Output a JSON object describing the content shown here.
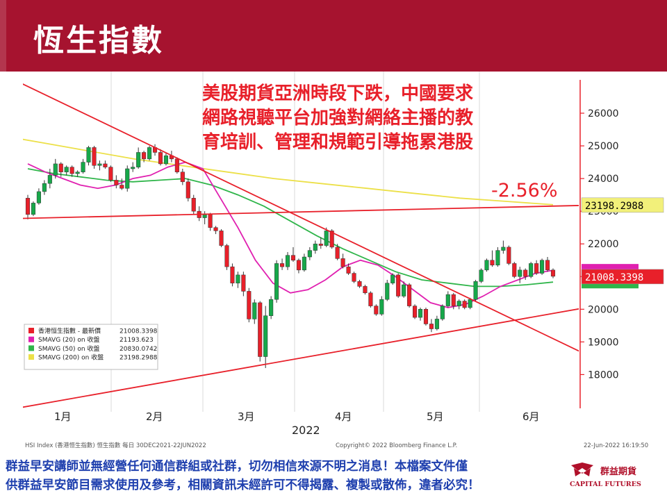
{
  "page": {
    "title": "恆生指數"
  },
  "annotation": {
    "headline_lines": [
      "美股期貨亞洲時段下跌，中國要求",
      "網路視聽平台加強對網絡主播的教",
      "育培訓、管理和規範引導拖累港股"
    ],
    "change_pct": "-2.56%"
  },
  "colors": {
    "header": "#a6132f",
    "up": "#17a84a",
    "down": "#e8202a",
    "sma20": "#e020b0",
    "sma50": "#2fb54a",
    "sma200": "#ece048",
    "trend": "#e8202a",
    "axis": "#e8202a",
    "headline": "#e8202a",
    "disclaimer": "#1e3fae"
  },
  "chart_data": {
    "type": "candlestick",
    "x_tick_labels": [
      "1月",
      "2月",
      "3月",
      "4月",
      "5月",
      "6月"
    ],
    "year_label": "2022",
    "y_ticks": [
      18000,
      19000,
      20000,
      21000,
      22000,
      23000,
      24000,
      25000,
      26000
    ],
    "y_tick_labels": [
      "18000",
      "19000",
      "20000",
      "21000",
      "22000",
      "23000",
      "24000",
      "25000",
      "26000"
    ],
    "ylim": [
      17000,
      26800
    ],
    "grid": "vertical",
    "legend_position": "bottom-left",
    "legend": [
      {
        "name": "香港恒生指數 - 最新價",
        "value": "21008.3398",
        "color": "#e8202a"
      },
      {
        "name": "SMAVG (20)  on 收盤",
        "value": "21193.623",
        "color": "#e020b0"
      },
      {
        "name": "SMAVG (50)  on 收盤",
        "value": "20830.0742",
        "color": "#2fb54a"
      },
      {
        "name": "SMAVG (200)  on 收盤",
        "value": "23198.2988",
        "color": "#ece048"
      }
    ],
    "price_tags": [
      {
        "label": "23198.2988",
        "value": 23198.2988,
        "color": "#f2f07a",
        "text_color": "#000000"
      },
      {
        "label": "21008.3398",
        "value": 21008.3398,
        "color": "#e8202a",
        "text_color": "#ffffff"
      }
    ],
    "hidden_tags": [
      {
        "label": "21193.623",
        "value": 21193.623,
        "color": "#e020b0"
      },
      {
        "label": "20830.0742",
        "value": 20830.0742,
        "color": "#2fb54a"
      }
    ],
    "footer_left": "HSI Index (香港恒生指數) 恒生指數  每日 30DEC2021-22JUN2022",
    "footer_center": "Copyright© 2022 Bloomberg Finance L.P.",
    "footer_right": "22-Jun-2022 16:19:50",
    "ohlc": [
      [
        23400,
        23500,
        22750,
        22900
      ],
      [
        22900,
        23300,
        22850,
        23250
      ],
      [
        23250,
        23700,
        23200,
        23600
      ],
      [
        23600,
        23950,
        23500,
        23850
      ],
      [
        23850,
        24300,
        23700,
        24100
      ],
      [
        24100,
        24600,
        24000,
        24450
      ],
      [
        24450,
        24500,
        24050,
        24200
      ],
      [
        24200,
        24400,
        24100,
        24350
      ],
      [
        24350,
        24400,
        24050,
        24150
      ],
      [
        24150,
        24250,
        24050,
        24200
      ],
      [
        24200,
        24600,
        24150,
        24500
      ],
      [
        24500,
        25000,
        24400,
        24950
      ],
      [
        24950,
        25000,
        24300,
        24400
      ],
      [
        24400,
        24550,
        24250,
        24450
      ],
      [
        24450,
        24550,
        24300,
        24350
      ],
      [
        24350,
        24400,
        23900,
        23950
      ],
      [
        23950,
        24100,
        23700,
        23800
      ],
      [
        23800,
        24000,
        23650,
        23700
      ],
      [
        23700,
        24400,
        23600,
        24300
      ],
      [
        24300,
        24500,
        24200,
        24350
      ],
      [
        24350,
        24950,
        24300,
        24800
      ],
      [
        24800,
        24850,
        24500,
        24600
      ],
      [
        24600,
        25000,
        24550,
        24950
      ],
      [
        24950,
        25050,
        24700,
        24800
      ],
      [
        24800,
        24900,
        24400,
        24450
      ],
      [
        24450,
        24800,
        24400,
        24700
      ],
      [
        24700,
        24850,
        24500,
        24600
      ],
      [
        24600,
        24650,
        24150,
        24200
      ],
      [
        24200,
        24300,
        23800,
        23900
      ],
      [
        23900,
        24000,
        23300,
        23400
      ],
      [
        23400,
        23500,
        22900,
        23000
      ],
      [
        23000,
        23150,
        22700,
        22800
      ],
      [
        22800,
        23000,
        22600,
        22900
      ],
      [
        22900,
        22950,
        22400,
        22500
      ],
      [
        22500,
        22550,
        22300,
        22400
      ],
      [
        22400,
        22450,
        21900,
        21950
      ],
      [
        21950,
        22000,
        21200,
        21300
      ],
      [
        21300,
        21400,
        20700,
        20800
      ],
      [
        20800,
        21150,
        20650,
        21050
      ],
      [
        21050,
        21150,
        20400,
        20550
      ],
      [
        20550,
        20650,
        19600,
        19700
      ],
      [
        19700,
        20300,
        19550,
        20200
      ],
      [
        20200,
        20250,
        18400,
        18550
      ],
      [
        18550,
        20100,
        18200,
        19800
      ],
      [
        19800,
        20400,
        19700,
        20300
      ],
      [
        20300,
        21500,
        20200,
        21400
      ],
      [
        21400,
        21550,
        21200,
        21300
      ],
      [
        21300,
        21750,
        21200,
        21650
      ],
      [
        21650,
        21900,
        21450,
        21500
      ],
      [
        21500,
        21550,
        21100,
        21200
      ],
      [
        21200,
        21700,
        21150,
        21600
      ],
      [
        21600,
        21900,
        21500,
        21800
      ],
      [
        21800,
        22100,
        21700,
        22000
      ],
      [
        22000,
        22200,
        21850,
        21950
      ],
      [
        21950,
        22500,
        21900,
        22400
      ],
      [
        22400,
        22450,
        21850,
        21900
      ],
      [
        21900,
        22000,
        21500,
        21550
      ],
      [
        21550,
        21700,
        21250,
        21300
      ],
      [
        21300,
        21400,
        21050,
        21100
      ],
      [
        21100,
        21150,
        20800,
        20850
      ],
      [
        20850,
        20900,
        20650,
        20700
      ],
      [
        20700,
        20750,
        20450,
        20500
      ],
      [
        20500,
        20550,
        20050,
        20100
      ],
      [
        20100,
        20150,
        19800,
        19850
      ],
      [
        19850,
        20400,
        19800,
        20300
      ],
      [
        20300,
        20900,
        20250,
        20800
      ],
      [
        20800,
        21100,
        20750,
        21050
      ],
      [
        21050,
        21100,
        20350,
        20400
      ],
      [
        20400,
        20850,
        20350,
        20750
      ],
      [
        20750,
        20800,
        20050,
        20100
      ],
      [
        20100,
        20150,
        19700,
        19750
      ],
      [
        19750,
        20050,
        19650,
        20000
      ],
      [
        20000,
        20050,
        19500,
        19550
      ],
      [
        19550,
        19700,
        19300,
        19400
      ],
      [
        19400,
        19800,
        19350,
        19700
      ],
      [
        19700,
        20150,
        19650,
        20100
      ],
      [
        20100,
        20550,
        20050,
        20450
      ],
      [
        20450,
        20500,
        20000,
        20100
      ],
      [
        20100,
        20300,
        20000,
        20250
      ],
      [
        20250,
        20300,
        20000,
        20050
      ],
      [
        20050,
        20350,
        20000,
        20300
      ],
      [
        20300,
        20900,
        20250,
        20850
      ],
      [
        20850,
        21250,
        20800,
        21200
      ],
      [
        21200,
        21550,
        21150,
        21500
      ],
      [
        21500,
        21800,
        21300,
        21350
      ],
      [
        21350,
        21900,
        21300,
        21800
      ],
      [
        21800,
        22100,
        21700,
        21900
      ],
      [
        21900,
        21950,
        21350,
        21400
      ],
      [
        21400,
        21450,
        20950,
        21000
      ],
      [
        21000,
        21300,
        20800,
        21200
      ],
      [
        21200,
        21250,
        20900,
        21000
      ],
      [
        21000,
        21450,
        20950,
        21400
      ],
      [
        21400,
        21500,
        21050,
        21100
      ],
      [
        21100,
        21550,
        21050,
        21500
      ],
      [
        21500,
        21600,
        21150,
        21200
      ],
      [
        21200,
        21250,
        20950,
        21008
      ]
    ],
    "sma20": [
      24450,
      24200,
      24000,
      23800,
      23700,
      23800,
      24000,
      24100,
      24350,
      24500,
      24300,
      23400,
      22500,
      21500,
      20800,
      20500,
      20600,
      20900,
      21300,
      21500,
      21350,
      21000,
      20600,
      20200,
      20050,
      20150,
      20400,
      20700,
      20900,
      21100,
      21193
    ],
    "sma50": [
      24300,
      24150,
      24050,
      23950,
      23900,
      23950,
      24000,
      23800,
      23500,
      23150,
      22700,
      22250,
      21850,
      21500,
      21150,
      20900,
      20800,
      20700,
      20700,
      20750,
      20830
    ],
    "sma200": [
      25350,
      25100,
      24850,
      24600,
      24400,
      24200,
      24000,
      23850,
      23700,
      23550,
      23400,
      23300,
      23198
    ]
  },
  "footer": {
    "disclaimer_lines": [
      "群益早安講師並無經營任何通信群組或社群，切勿相信來源不明之消息！本檔案文件僅",
      "供群益早安節目需求使用及參考，相關資訊未經許可不得揭露、複製或散佈，違者必究！"
    ],
    "logo_name": "群益期貨",
    "logo_en": "CAPITAL FUTURES",
    "logo_icon": "capital-logo-icon"
  }
}
